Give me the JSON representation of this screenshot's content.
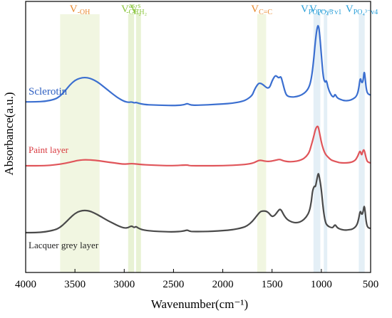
{
  "chart_data": {
    "type": "line",
    "xlabel": "Wavenumber(cm⁻¹)",
    "ylabel": "Absorbance(a.u.)",
    "xlim": [
      4000,
      500
    ],
    "x_reversed": true,
    "x_ticks": [
      4000,
      3500,
      3000,
      2500,
      2000,
      1500,
      1000,
      500
    ],
    "y_ticks_shown": false,
    "grid": false,
    "legend": "series labels placed at left inside plot",
    "bands": [
      {
        "label_main": "V",
        "label_sub": "-OH",
        "range": [
          3650,
          3250
        ],
        "color": "#eef5dc",
        "label_color": "#e8892f"
      },
      {
        "label_main": "V",
        "label_sup": "as",
        "label_sub": "-CH₂",
        "range": [
          2960,
          2900
        ],
        "color": "#e4f0cc",
        "label_color": "#8cc63f"
      },
      {
        "label_main": "V",
        "label_sup": "s",
        "label_sub": "-CH₂",
        "range": [
          2880,
          2830
        ],
        "color": "#e4f0cc",
        "label_color": "#8cc63f"
      },
      {
        "label_main": "V",
        "label_sub": "C=C",
        "range": [
          1650,
          1560
        ],
        "color": "#eef5dc",
        "label_color": "#e8892f"
      },
      {
        "label_main": "V",
        "label_sub": "PO₄³⁻v3",
        "range": [
          1080,
          1010
        ],
        "color": "#dfecf5",
        "label_color": "#2a9fd8"
      },
      {
        "label_main": "V",
        "label_sub": "PO₄³⁻v1",
        "range": [
          975,
          940
        ],
        "color": "#dfecf5",
        "label_color": "#2a9fd8"
      },
      {
        "label_main": "V",
        "label_sub": "PO₄³⁻v4",
        "range": [
          620,
          560
        ],
        "color": "#dfecf5",
        "label_color": "#2a9fd8"
      }
    ],
    "series": [
      {
        "name": "Sclerotin",
        "color": "#3b6fd0",
        "label_color": "#2e5fc2",
        "x": [
          4000,
          3900,
          3800,
          3700,
          3650,
          3600,
          3550,
          3500,
          3450,
          3400,
          3350,
          3300,
          3250,
          3200,
          3150,
          3100,
          3050,
          3000,
          2960,
          2925,
          2900,
          2880,
          2855,
          2800,
          2700,
          2600,
          2500,
          2400,
          2360,
          2340,
          2300,
          2200,
          2100,
          2000,
          1900,
          1800,
          1750,
          1700,
          1680,
          1650,
          1630,
          1600,
          1560,
          1540,
          1520,
          1500,
          1470,
          1455,
          1430,
          1410,
          1390,
          1370,
          1350,
          1300,
          1250,
          1200,
          1150,
          1120,
          1100,
          1080,
          1060,
          1040,
          1030,
          1020,
          1000,
          980,
          960,
          950,
          930,
          900,
          880,
          870,
          860,
          840,
          800,
          760,
          720,
          680,
          640,
          620,
          605,
          590,
          575,
          565,
          555,
          545,
          530,
          500
        ],
        "y": [
          0.4,
          0.4,
          0.42,
          0.5,
          0.62,
          0.82,
          1.05,
          1.22,
          1.3,
          1.33,
          1.3,
          1.22,
          1.1,
          0.95,
          0.8,
          0.65,
          0.52,
          0.42,
          0.38,
          0.4,
          0.36,
          0.38,
          0.35,
          0.3,
          0.28,
          0.27,
          0.26,
          0.28,
          0.34,
          0.3,
          0.27,
          0.28,
          0.3,
          0.32,
          0.35,
          0.42,
          0.5,
          0.65,
          0.85,
          1.05,
          1.12,
          1.08,
          0.95,
          0.92,
          0.98,
          1.2,
          1.4,
          1.38,
          1.3,
          1.38,
          1.1,
          0.8,
          0.62,
          0.58,
          0.6,
          0.66,
          0.8,
          1.0,
          1.3,
          1.9,
          2.75,
          3.28,
          3.3,
          3.1,
          2.2,
          1.3,
          1.12,
          1.25,
          0.9,
          0.65,
          0.58,
          0.62,
          0.7,
          0.55,
          0.48,
          0.44,
          0.45,
          0.5,
          0.62,
          0.9,
          1.35,
          1.1,
          1.2,
          1.6,
          1.3,
          0.9,
          0.7,
          0.66
        ]
      },
      {
        "name": "Paint layer",
        "color": "#e0555a",
        "label_color": "#d9383e",
        "x": [
          4000,
          3800,
          3700,
          3600,
          3500,
          3450,
          3400,
          3300,
          3200,
          3100,
          3000,
          2925,
          2855,
          2700,
          2500,
          2360,
          2340,
          2200,
          2000,
          1800,
          1700,
          1650,
          1620,
          1580,
          1540,
          1500,
          1460,
          1420,
          1380,
          1300,
          1200,
          1150,
          1120,
          1100,
          1080,
          1060,
          1040,
          1030,
          1020,
          1000,
          980,
          960,
          940,
          900,
          870,
          840,
          800,
          720,
          660,
          630,
          610,
          600,
          590,
          580,
          570,
          560,
          550,
          540,
          530,
          500
        ],
        "y": [
          0.0,
          0.0,
          0.02,
          0.05,
          0.1,
          0.12,
          0.13,
          0.12,
          0.09,
          0.06,
          0.03,
          0.05,
          0.03,
          0.01,
          0.0,
          0.02,
          0.0,
          0.0,
          0.0,
          0.02,
          0.05,
          0.1,
          0.12,
          0.1,
          0.09,
          0.1,
          0.12,
          0.14,
          0.1,
          0.08,
          0.12,
          0.2,
          0.3,
          0.45,
          0.6,
          0.78,
          0.85,
          0.82,
          0.72,
          0.5,
          0.35,
          0.25,
          0.2,
          0.12,
          0.1,
          0.08,
          0.06,
          0.06,
          0.1,
          0.2,
          0.32,
          0.28,
          0.22,
          0.3,
          0.35,
          0.3,
          0.2,
          0.12,
          0.08,
          0.06
        ]
      },
      {
        "name": "Lacquer grey layer",
        "color": "#4a4a4a",
        "label_color": "#222222",
        "x": [
          4000,
          3900,
          3800,
          3700,
          3650,
          3600,
          3550,
          3500,
          3450,
          3400,
          3350,
          3300,
          3250,
          3200,
          3150,
          3100,
          3050,
          3000,
          2960,
          2925,
          2900,
          2880,
          2855,
          2800,
          2700,
          2600,
          2500,
          2400,
          2360,
          2340,
          2300,
          2200,
          2100,
          2000,
          1900,
          1800,
          1750,
          1700,
          1650,
          1620,
          1600,
          1560,
          1530,
          1500,
          1470,
          1440,
          1420,
          1400,
          1380,
          1350,
          1300,
          1250,
          1200,
          1150,
          1120,
          1100,
          1090,
          1070,
          1060,
          1040,
          1030,
          1020,
          1000,
          980,
          960,
          940,
          900,
          880,
          860,
          840,
          800,
          760,
          720,
          680,
          640,
          620,
          605,
          590,
          575,
          565,
          555,
          545,
          530,
          500
        ],
        "y": [
          0.0,
          0.0,
          0.02,
          0.08,
          0.15,
          0.28,
          0.42,
          0.55,
          0.62,
          0.64,
          0.62,
          0.56,
          0.48,
          0.4,
          0.32,
          0.25,
          0.18,
          0.13,
          0.14,
          0.2,
          0.14,
          0.18,
          0.12,
          0.07,
          0.04,
          0.03,
          0.02,
          0.04,
          0.08,
          0.04,
          0.03,
          0.03,
          0.04,
          0.06,
          0.08,
          0.14,
          0.2,
          0.32,
          0.5,
          0.6,
          0.62,
          0.62,
          0.56,
          0.45,
          0.5,
          0.62,
          0.68,
          0.62,
          0.5,
          0.38,
          0.3,
          0.28,
          0.32,
          0.45,
          0.62,
          0.9,
          1.2,
          1.35,
          1.3,
          1.6,
          1.72,
          1.6,
          1.25,
          0.65,
          0.3,
          0.2,
          0.14,
          0.15,
          0.24,
          0.14,
          0.09,
          0.07,
          0.08,
          0.1,
          0.2,
          0.4,
          0.65,
          0.5,
          0.6,
          0.8,
          0.6,
          0.3,
          0.14,
          0.12
        ]
      }
    ]
  }
}
